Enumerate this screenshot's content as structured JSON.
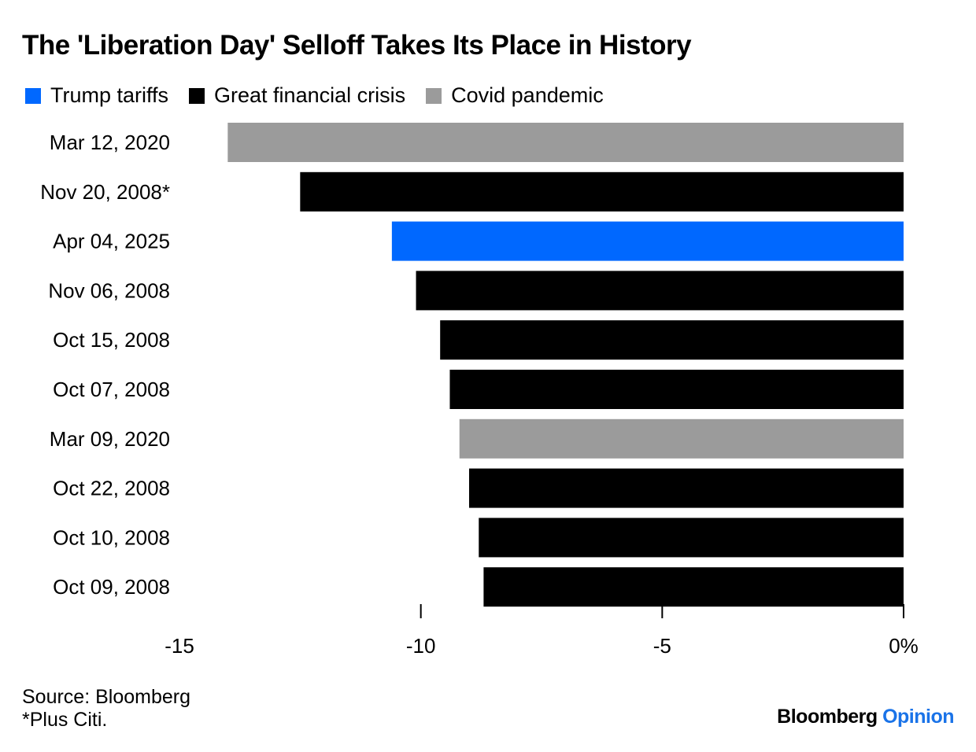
{
  "chart_data": {
    "type": "bar",
    "orientation": "horizontal",
    "title": "The 'Liberation Day' Selloff Takes Its Place in History",
    "legend": [
      {
        "name": "Trump tariffs",
        "color": "#0068ff"
      },
      {
        "name": "Great financial crisis",
        "color": "#000000"
      },
      {
        "name": "Covid pandemic",
        "color": "#9b9b9b"
      }
    ],
    "legend_position": "top-left",
    "categories": [
      "Mar 12, 2020",
      "Nov 20, 2008*",
      "Apr 04, 2025",
      "Nov 06, 2008",
      "Oct 15, 2008",
      "Oct 07, 2008",
      "Mar 09, 2020",
      "Oct 22, 2008",
      "Oct 10, 2008",
      "Oct 09, 2008"
    ],
    "values": [
      -14.0,
      -12.5,
      -10.6,
      -10.1,
      -9.6,
      -9.4,
      -9.2,
      -9.0,
      -8.8,
      -8.7
    ],
    "bar_groups": [
      "Covid pandemic",
      "Great financial crisis",
      "Trump tariffs",
      "Great financial crisis",
      "Great financial crisis",
      "Great financial crisis",
      "Covid pandemic",
      "Great financial crisis",
      "Great financial crisis",
      "Great financial crisis"
    ],
    "xlim": [
      -15,
      0
    ],
    "xticks": [
      -15,
      -10,
      -5,
      0
    ],
    "xtick_labels": [
      "-15",
      "-10",
      "-5",
      "0%"
    ],
    "grid": false
  },
  "footer": {
    "source": "Source: Bloomberg",
    "note": "*Plus Citi."
  },
  "brand": {
    "name": "Bloomberg",
    "accent": "Opinion"
  }
}
